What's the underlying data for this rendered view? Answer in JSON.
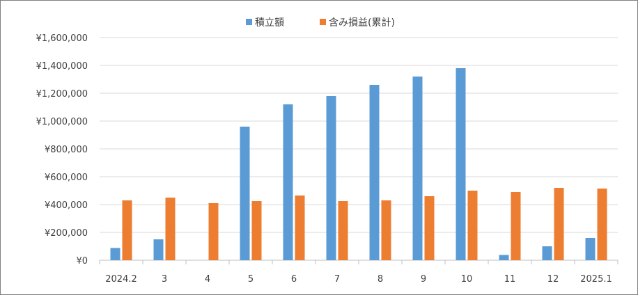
{
  "chart_data": {
    "type": "bar",
    "categories": [
      "2024.2",
      "3",
      "4",
      "5",
      "6",
      "7",
      "8",
      "9",
      "10",
      "11",
      "12",
      "2025.1"
    ],
    "series": [
      {
        "name": "積立額",
        "color": "#5b9bd5",
        "values": [
          88000,
          150000,
          0,
          960000,
          1120000,
          1180000,
          1260000,
          1320000,
          1380000,
          38000,
          100000,
          160000
        ]
      },
      {
        "name": "含み損益(累計)",
        "color": "#ed7d31",
        "values": [
          430000,
          450000,
          410000,
          425000,
          465000,
          425000,
          430000,
          460000,
          500000,
          490000,
          520000,
          515000
        ]
      }
    ],
    "ylim": [
      0,
      1600000
    ],
    "yticks": [
      0,
      200000,
      400000,
      600000,
      800000,
      1000000,
      1200000,
      1400000,
      1600000
    ],
    "ytick_labels": [
      "¥0",
      "¥200,000",
      "¥400,000",
      "¥600,000",
      "¥800,000",
      "¥1,000,000",
      "¥1,200,000",
      "¥1,400,000",
      "¥1,600,000"
    ],
    "grid": true,
    "legend_position": "top"
  }
}
